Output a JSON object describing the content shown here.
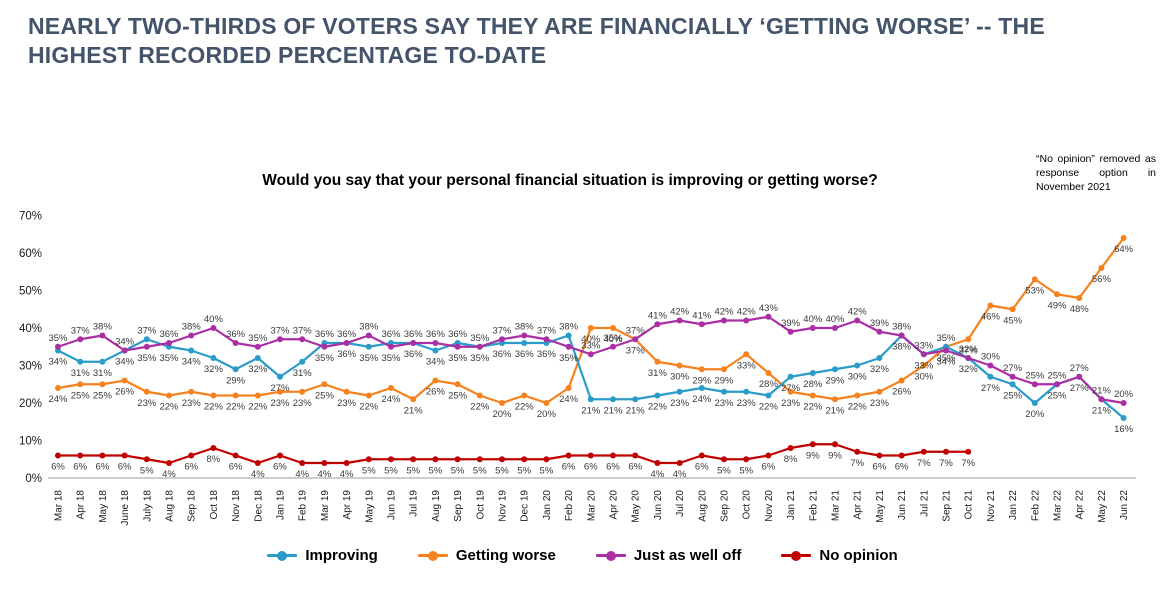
{
  "header": {
    "title": "NEARLY TWO-THIRDS OF VOTERS SAY THEY ARE FINANCIALLY ‘GETTING WORSE’ -- THE HIGHEST RECORDED PERCENTAGE TO-DATE"
  },
  "annotation": {
    "text": "“No opinion” removed as response option in November 2021"
  },
  "chart_data": {
    "type": "line",
    "title": "Would you say that your personal financial situation is improving or getting worse?",
    "categories": [
      "Mar 18",
      "Apr 18",
      "May 18",
      "June 18",
      "July 18",
      "Aug 18",
      "Sep 18",
      "Oct 18",
      "Nov 18",
      "Dec 18",
      "Jan 19",
      "Feb 19",
      "Mar 19",
      "Apr 19",
      "May 19",
      "Jun 19",
      "Jul 19",
      "Aug 19",
      "Sep 19",
      "Oct 19",
      "Nov 19",
      "Dec 19",
      "Jan 20",
      "Feb 20",
      "Mar 20",
      "Apr 20",
      "May 20",
      "Jun 20",
      "Jul 20",
      "Aug 20",
      "Sep 20",
      "Oct 20",
      "Nov 20",
      "Jan 21",
      "Feb 21",
      "Mar 21",
      "Apr 21",
      "May 21",
      "Jun 21",
      "Jul 21",
      "Sep 21",
      "Oct 21",
      "Nov 21",
      "Jan 22",
      "Feb 22",
      "Mar 22",
      "Apr 22",
      "May 22",
      "Jun 22"
    ],
    "series": [
      {
        "name": "Improving",
        "color": "#2B9CC9",
        "values": [
          34,
          31,
          31,
          34,
          37,
          35,
          34,
          32,
          29,
          32,
          27,
          31,
          36,
          36,
          35,
          36,
          36,
          34,
          36,
          35,
          36,
          36,
          36,
          38,
          21,
          21,
          21,
          22,
          23,
          24,
          23,
          23,
          22,
          27,
          28,
          29,
          30,
          32,
          38,
          33,
          35,
          32,
          27,
          25,
          20,
          25,
          27,
          21,
          16
        ]
      },
      {
        "name": "Getting worse",
        "color": "#F5821E",
        "values": [
          24,
          25,
          25,
          26,
          23,
          22,
          23,
          22,
          22,
          22,
          23,
          23,
          25,
          23,
          22,
          24,
          21,
          26,
          25,
          22,
          20,
          22,
          20,
          24,
          40,
          40,
          37,
          31,
          30,
          29,
          29,
          33,
          28,
          23,
          22,
          21,
          22,
          23,
          26,
          30,
          35,
          37,
          46,
          45,
          53,
          49,
          48,
          56,
          64
        ]
      },
      {
        "name": "Just as well off",
        "color": "#AA2FA5",
        "values": [
          35,
          37,
          38,
          34,
          35,
          36,
          38,
          40,
          36,
          35,
          37,
          37,
          35,
          36,
          38,
          35,
          36,
          36,
          35,
          35,
          37,
          38,
          37,
          35,
          33,
          35,
          37,
          41,
          42,
          41,
          42,
          42,
          43,
          39,
          40,
          40,
          42,
          39,
          38,
          33,
          34,
          32,
          30,
          27,
          25,
          25,
          27,
          21,
          20
        ]
      },
      {
        "name": "No opinion",
        "color": "#C00000",
        "values": [
          6,
          6,
          6,
          6,
          5,
          4,
          6,
          8,
          6,
          4,
          6,
          4,
          4,
          4,
          5,
          5,
          5,
          5,
          5,
          5,
          5,
          5,
          5,
          6,
          6,
          6,
          6,
          4,
          4,
          6,
          5,
          5,
          6,
          8,
          9,
          9,
          7,
          6,
          6,
          7,
          7,
          7,
          null,
          null,
          null,
          null,
          null,
          null,
          null
        ]
      }
    ],
    "xlabel": "",
    "ylabel": "",
    "ylim": [
      0,
      70
    ],
    "yticks": [
      "0%",
      "10%",
      "20%",
      "30%",
      "40%",
      "50%",
      "60%",
      "70%"
    ],
    "grid": false,
    "legend_position": "bottom",
    "data_labels": true,
    "label_suffix": "%"
  },
  "colors": {
    "title": "#44546A",
    "axis": "#9b9b9b",
    "data_label": "#3a3a3a",
    "tick_label": "#1a1a1a"
  }
}
